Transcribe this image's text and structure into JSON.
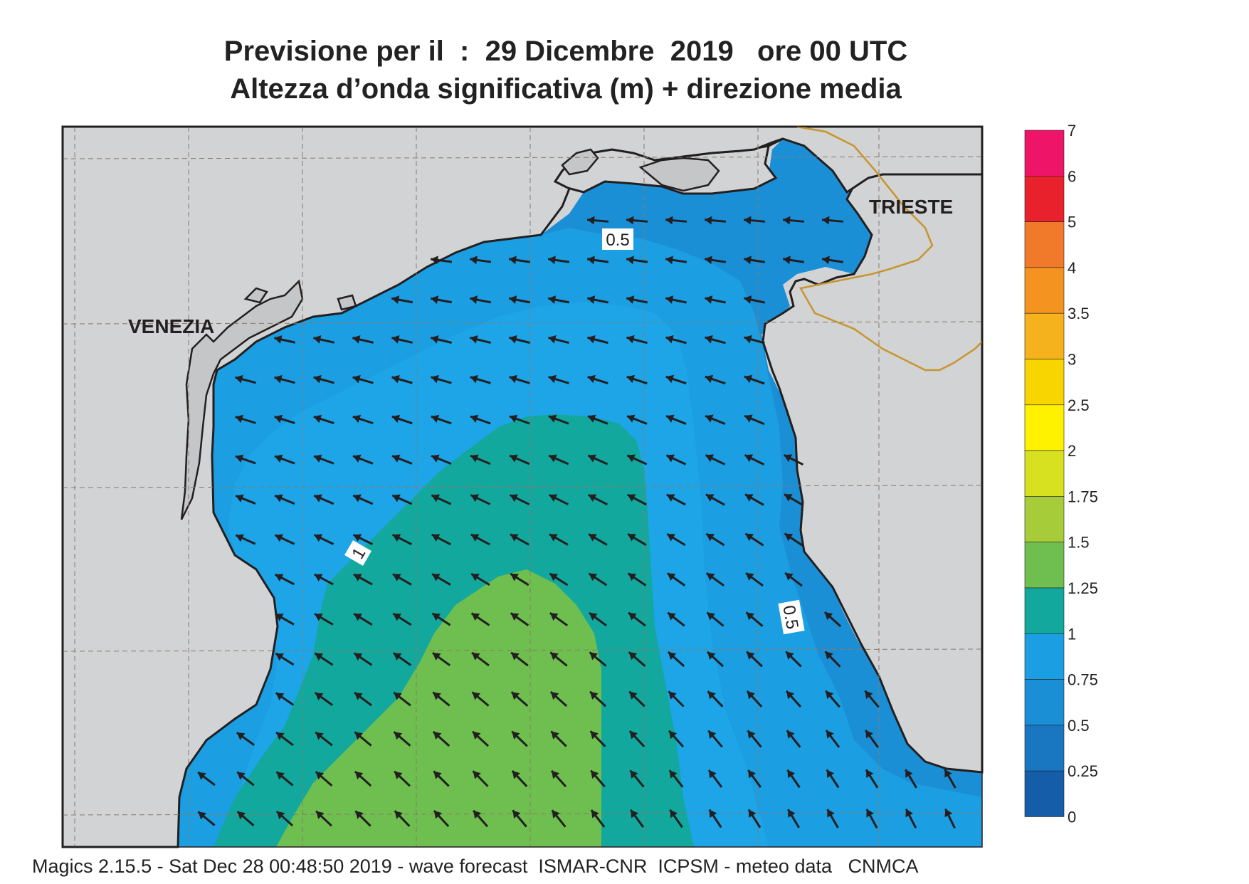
{
  "title": {
    "line1": "Previsione per il  :  29 Dicembre  2019   ore 00 UTC",
    "line2": "Altezza d’onda significativa (m) + direzione media"
  },
  "places": [
    {
      "name": "VENEZIA"
    },
    {
      "name": "TRIESTE"
    }
  ],
  "contour_labels": [
    "0.5",
    "1",
    "0.5"
  ],
  "legend": {
    "levels": [
      "7",
      "6",
      "5",
      "4",
      "3.5",
      "3",
      "2.5",
      "2",
      "1.75",
      "1.5",
      "1.25",
      "1",
      "0.75",
      "0.5",
      "0.25",
      "0"
    ],
    "colors": [
      "#ee1569",
      "#e8212d",
      "#f07a2a",
      "#f4931f",
      "#f5b21c",
      "#f9d500",
      "#fff200",
      "#d7e11f",
      "#a6cc3a",
      "#6ebf4f",
      "#13a89e",
      "#1b9ee2",
      "#1b8fd6",
      "#1976c1",
      "#155da8"
    ]
  },
  "colors": {
    "land": "#d1d3d4",
    "coast": "#231f20",
    "border": "#c8952e"
  },
  "footer": "Magics 2.15.5 - Sat Dec 28 00:48:50 2019 - wave forecast  ISMAR-CNR  ICPSM - meteo data   CNMCA"
}
